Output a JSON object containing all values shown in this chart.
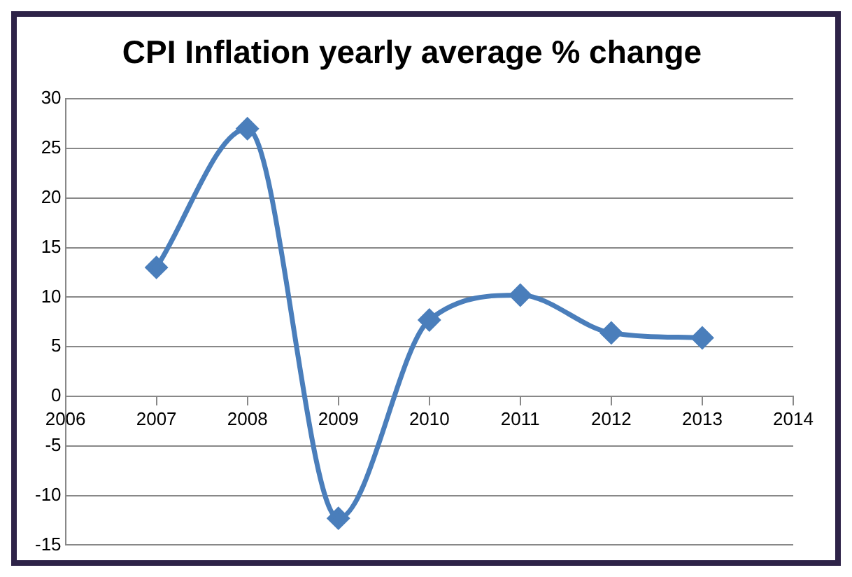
{
  "chart_data": {
    "type": "line",
    "title": "CPI Inflation yearly average % change",
    "x": [
      2007,
      2008,
      2009,
      2010,
      2011,
      2012,
      2013
    ],
    "series": [
      {
        "color": "#4a7ebb",
        "values": [
          13,
          27,
          -12.3,
          7.7,
          10.2,
          6.4,
          5.9
        ]
      }
    ],
    "xlim": [
      2006,
      2014
    ],
    "xticks": [
      2006,
      2007,
      2008,
      2009,
      2010,
      2011,
      2012,
      2013,
      2014
    ],
    "ylim": [
      -15,
      30
    ],
    "yticks": [
      -15,
      -10,
      -5,
      0,
      5,
      10,
      15,
      20,
      25,
      30
    ],
    "grid": "y",
    "legend": false,
    "marker": "diamond",
    "line_style": "solid"
  }
}
